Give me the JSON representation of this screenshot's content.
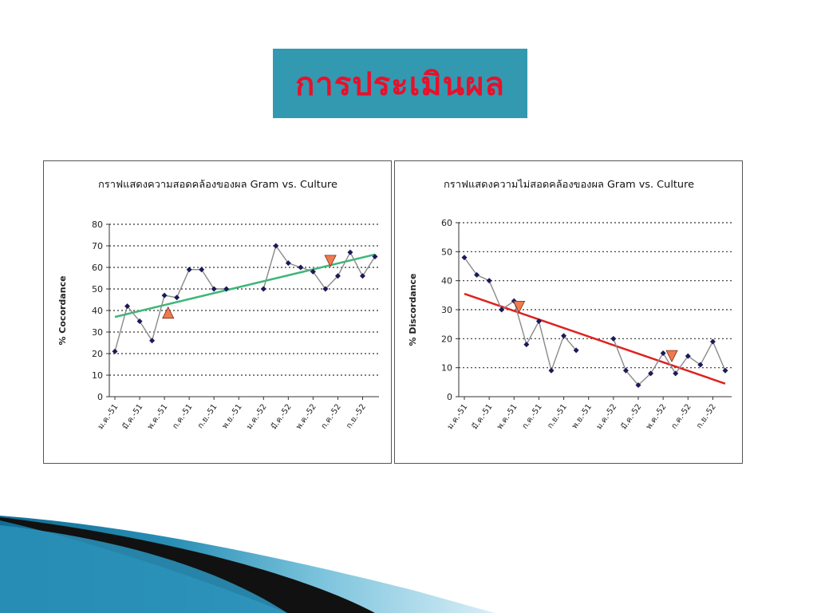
{
  "slide": {
    "title": "การประเมินผล",
    "title_bg": "#3399b0",
    "title_color": "#e8102b"
  },
  "chart_data": [
    {
      "type": "line",
      "title": "กราฟแสดงความสอดคล้องของผล Gram vs. Culture",
      "ylabel": "% Cocordance",
      "xlabel": "",
      "ylim": [
        0,
        80
      ],
      "yticks": [
        0,
        10,
        20,
        30,
        40,
        50,
        60,
        70,
        80
      ],
      "grid": true,
      "tick_labels": [
        "ม.ค.-51",
        "มี.ค.-51",
        "พ.ค.-51",
        "ก.ค.-51",
        "ก.ย.-51",
        "พ.ย.-51",
        "ม.ค.-52",
        "มี.ค.-52",
        "พ.ค.-52",
        "ก.ค.-52",
        "ก.ย.-52"
      ],
      "series": [
        {
          "values": [
            21,
            42,
            35,
            26,
            47,
            46,
            59,
            59,
            50,
            50,
            null,
            null,
            50,
            70,
            62,
            60,
            58,
            50,
            56,
            67,
            56,
            65
          ],
          "color": "#1a1a5a"
        }
      ],
      "trend": {
        "start": 37,
        "end": 66,
        "color": "#3cb878"
      },
      "markers": [
        {
          "index": 4.3,
          "value": 39,
          "direction": "up",
          "color": "#f07a50"
        },
        {
          "index": 17.4,
          "value": 63,
          "direction": "down",
          "color": "#f07a50"
        }
      ]
    },
    {
      "type": "line",
      "title": "กราฟแสดงความไม่สอดคล้องของผล Gram vs. Culture",
      "ylabel": "% Discordance",
      "xlabel": "",
      "ylim": [
        0,
        60
      ],
      "yticks": [
        0,
        10,
        20,
        30,
        40,
        50,
        60
      ],
      "grid": true,
      "tick_labels": [
        "ม.ค.-51",
        "มี.ค.-51",
        "พ.ค.-51",
        "ก.ค.-51",
        "ก.ย.-51",
        "พ.ย.-51",
        "ม.ค.-52",
        "มี.ค.-52",
        "พ.ค.-52",
        "ก.ค.-52",
        "ก.ย.-52"
      ],
      "series": [
        {
          "values": [
            48,
            42,
            40,
            30,
            33,
            18,
            26,
            9,
            21,
            16,
            null,
            null,
            20,
            9,
            4,
            8,
            15,
            8,
            14,
            11,
            19,
            9
          ],
          "color": "#1a1a5a"
        }
      ],
      "trend": {
        "start": 35.5,
        "end": 4.5,
        "color": "#e02020"
      },
      "markers": [
        {
          "index": 4.4,
          "value": 31,
          "direction": "down",
          "color": "#f07a50"
        },
        {
          "index": 16.7,
          "value": 14,
          "direction": "down",
          "color": "#f07a50"
        }
      ]
    }
  ]
}
